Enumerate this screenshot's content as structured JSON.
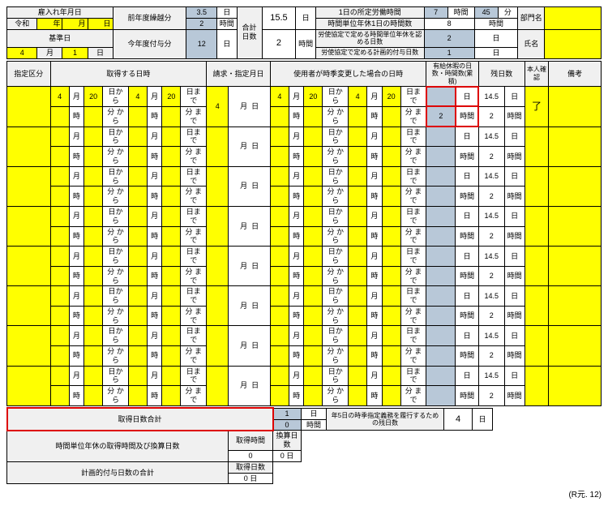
{
  "yellow": "#ffff00",
  "blue": "#b8c8d8",
  "h": {
    "hire": "雇入れ年月日",
    "era": "令和",
    "y": "年",
    "m": "月",
    "d": "日",
    "ref": "基準日",
    "refM": "4",
    "refD": "1",
    "prev": "前年度繰越分",
    "curr": "今年度付与分",
    "prevD": "3.5",
    "prevH": "2",
    "currD": "12",
    "goukei": "合計",
    "nissuu": "日数",
    "sumD": "15.5",
    "sumH": "2",
    "workH": "1日の所定労働時間",
    "wH": "7",
    "hr": "時間",
    "wM": "45",
    "min": "分",
    "yearH": "時間単位年休1日の時間数",
    "yH": "8",
    "lab1": "労使協定で定める時間単位年休を認める日数",
    "lab1V": "2",
    "lab2": "労使協定で定める計画的付与日数",
    "lab2V": "1",
    "dept": "部門名",
    "name": "氏名"
  },
  "ch": {
    "c1": "指定区分",
    "c2": "取得する日時",
    "c3": "請求・指定月日",
    "c4": "使用者が時季変更した場合の日時",
    "c5": "有給休暇の日数・時間数(累積)",
    "c6": "残日数",
    "c7": "本人確認",
    "c8": "備考"
  },
  "u": {
    "m": "月",
    "d": "日",
    "kara": "日から",
    "ji": "時",
    "fun": "分",
    "made": "日まで",
    "kara2": "から",
    "made2": "まで",
    "hr": "時間"
  },
  "sample": {
    "m1": "4",
    "d1": "20",
    "m2": "4",
    "d2": "20",
    "paidH": "2",
    "remD": "14.5",
    "remH": "2",
    "check": "了"
  },
  "rowCount": 8,
  "ft": {
    "total": "取得日数合計",
    "totD": "1",
    "totH": "0",
    "obl": "年5日の時季指定義務を履行するための残日数",
    "oblV": "4",
    "convLabel": "時間単位年休の取得時間及び換算日数",
    "convH": "取得時間",
    "convD": "換算日数",
    "conv0": "0",
    "plan": "計画的付与日数の合計",
    "planD": "取得日数",
    "plan0": "0",
    "rev": "(R元. 12)"
  }
}
